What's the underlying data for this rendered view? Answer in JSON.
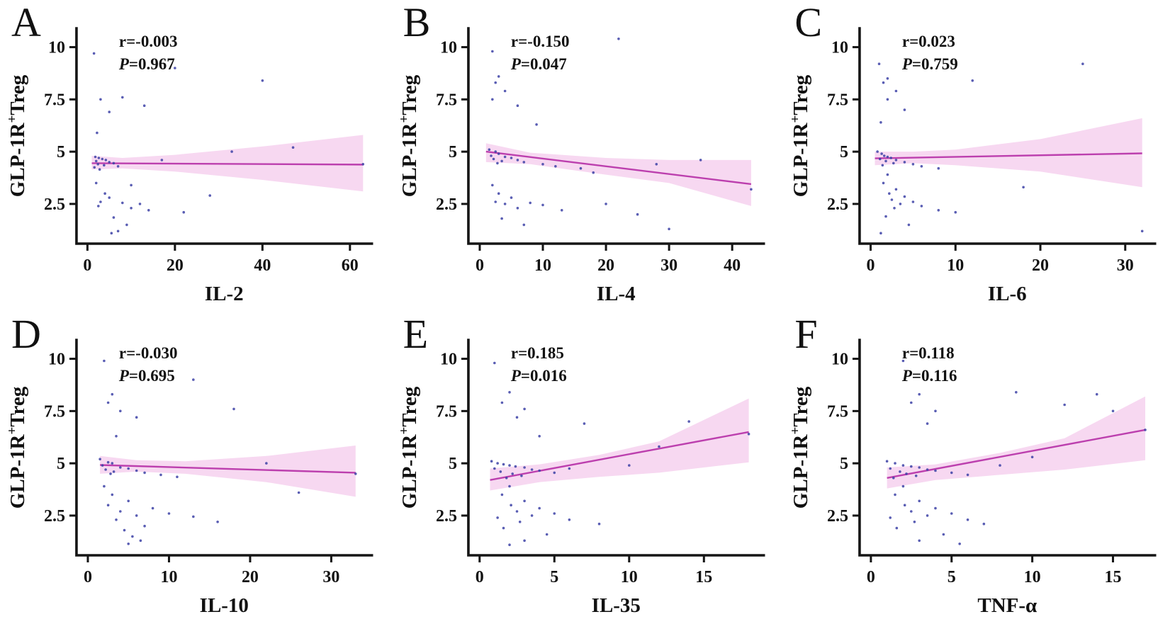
{
  "colors": {
    "band": "#f7d8f1",
    "line": "#bc3fae",
    "dots": "#3c41a6",
    "axis": "#151515"
  },
  "chart_data": [
    {
      "type": "scatter",
      "panel": "A",
      "xlabel": "IL-2",
      "ylabel": {
        "pre": "GLP-1R",
        "sup": "+",
        "post": "Treg"
      },
      "stats": {
        "r": "r=-0.003",
        "p_italic": "P",
        "p_rest": "=0.967"
      },
      "xlim": [
        -2.5,
        65
      ],
      "ylim": [
        0.6,
        10.9
      ],
      "xticks": [
        0,
        20,
        40,
        60
      ],
      "yticks": [
        2.5,
        5,
        7.5,
        10
      ],
      "regression": {
        "x": [
          1,
          63
        ],
        "y": [
          4.45,
          4.38
        ]
      },
      "band": {
        "x": [
          1,
          8,
          20,
          40,
          63
        ],
        "upper": [
          4.8,
          4.7,
          4.85,
          5.25,
          5.8
        ],
        "lower": [
          4.15,
          4.2,
          4.05,
          3.65,
          3.1
        ]
      },
      "points": [
        [
          1.5,
          9.7
        ],
        [
          8,
          7.6
        ],
        [
          3,
          7.5
        ],
        [
          13,
          7.2
        ],
        [
          5,
          6.9
        ],
        [
          2.2,
          5.9
        ],
        [
          20,
          9.0
        ],
        [
          40,
          8.4
        ],
        [
          1.8,
          4.75
        ],
        [
          2.6,
          4.7
        ],
        [
          3.4,
          4.65
        ],
        [
          4.2,
          4.6
        ],
        [
          2,
          4.55
        ],
        [
          5,
          4.5
        ],
        [
          6,
          4.45
        ],
        [
          2.4,
          4.4
        ],
        [
          3.8,
          4.35
        ],
        [
          7,
          4.3
        ],
        [
          1.6,
          4.25
        ],
        [
          2.8,
          4.15
        ],
        [
          2,
          3.5
        ],
        [
          10,
          3.4
        ],
        [
          4,
          3.0
        ],
        [
          28,
          2.9
        ],
        [
          5,
          2.8
        ],
        [
          3,
          2.6
        ],
        [
          8,
          2.55
        ],
        [
          12,
          2.5
        ],
        [
          2.5,
          2.4
        ],
        [
          10,
          2.3
        ],
        [
          14,
          2.2
        ],
        [
          22,
          2.1
        ],
        [
          6,
          1.85
        ],
        [
          9,
          1.5
        ],
        [
          7,
          1.2
        ],
        [
          5.5,
          1.1
        ],
        [
          33,
          5.0
        ],
        [
          47,
          5.2
        ],
        [
          63,
          4.4
        ],
        [
          17,
          4.6
        ]
      ]
    },
    {
      "type": "scatter",
      "panel": "B",
      "xlabel": "IL-4",
      "ylabel": {
        "pre": "GLP-1R",
        "sup": "+",
        "post": "Treg"
      },
      "stats": {
        "r": "r=-0.150",
        "p_italic": "P",
        "p_rest": "=0.047"
      },
      "xlim": [
        -1.8,
        45
      ],
      "ylim": [
        0.6,
        10.9
      ],
      "xticks": [
        0,
        10,
        20,
        30,
        40
      ],
      "yticks": [
        2.5,
        5,
        7.5,
        10
      ],
      "regression": {
        "x": [
          1,
          43
        ],
        "y": [
          5.0,
          3.45
        ]
      },
      "band": {
        "x": [
          1,
          8,
          20,
          30,
          43
        ],
        "upper": [
          5.4,
          4.95,
          4.7,
          4.6,
          4.6
        ],
        "lower": [
          4.5,
          4.4,
          3.9,
          3.5,
          2.4
        ]
      },
      "points": [
        [
          2,
          9.8
        ],
        [
          22,
          10.4
        ],
        [
          3,
          8.6
        ],
        [
          2.5,
          8.3
        ],
        [
          4,
          7.9
        ],
        [
          2,
          7.5
        ],
        [
          6,
          7.2
        ],
        [
          9,
          6.3
        ],
        [
          1.5,
          5.1
        ],
        [
          2.5,
          5.0
        ],
        [
          3,
          4.9
        ],
        [
          1.8,
          4.8
        ],
        [
          4,
          4.75
        ],
        [
          5,
          4.7
        ],
        [
          2.2,
          4.65
        ],
        [
          6,
          4.6
        ],
        [
          3.5,
          4.55
        ],
        [
          7,
          4.5
        ],
        [
          2.8,
          4.45
        ],
        [
          10,
          4.4
        ],
        [
          12,
          4.3
        ],
        [
          16,
          4.2
        ],
        [
          18,
          4.0
        ],
        [
          35,
          4.6
        ],
        [
          28,
          4.4
        ],
        [
          2,
          3.4
        ],
        [
          3,
          3.0
        ],
        [
          5,
          2.8
        ],
        [
          2.5,
          2.6
        ],
        [
          8,
          2.55
        ],
        [
          4,
          2.5
        ],
        [
          10,
          2.45
        ],
        [
          6,
          2.3
        ],
        [
          13,
          2.2
        ],
        [
          20,
          2.5
        ],
        [
          25,
          2.0
        ],
        [
          3.5,
          1.8
        ],
        [
          7,
          1.5
        ],
        [
          30,
          1.3
        ],
        [
          43,
          3.2
        ]
      ]
    },
    {
      "type": "scatter",
      "panel": "C",
      "xlabel": "IL-6",
      "ylabel": {
        "pre": "GLP-1R",
        "sup": "+",
        "post": "Treg"
      },
      "stats": {
        "r": "r=0.023",
        "p_italic": "P",
        "p_rest": "=0.759"
      },
      "xlim": [
        -1.3,
        33.5
      ],
      "ylim": [
        0.6,
        10.9
      ],
      "xticks": [
        0,
        10,
        20,
        30
      ],
      "yticks": [
        2.5,
        5,
        7.5,
        10
      ],
      "regression": {
        "x": [
          0.5,
          32
        ],
        "y": [
          4.68,
          4.92
        ]
      },
      "band": {
        "x": [
          0.5,
          5,
          10,
          20,
          32
        ],
        "upper": [
          5.0,
          5.0,
          5.1,
          5.6,
          6.6
        ],
        "lower": [
          4.35,
          4.45,
          4.35,
          4.05,
          3.3
        ]
      },
      "points": [
        [
          1,
          9.2
        ],
        [
          25,
          9.2
        ],
        [
          2,
          8.5
        ],
        [
          1.5,
          8.3
        ],
        [
          12,
          8.4
        ],
        [
          3,
          7.9
        ],
        [
          2,
          7.5
        ],
        [
          4,
          7.0
        ],
        [
          1.2,
          6.4
        ],
        [
          0.8,
          5.0
        ],
        [
          1.3,
          4.9
        ],
        [
          1.6,
          4.8
        ],
        [
          2,
          4.75
        ],
        [
          2.4,
          4.7
        ],
        [
          1.1,
          4.65
        ],
        [
          3,
          4.6
        ],
        [
          1.8,
          4.55
        ],
        [
          4,
          4.5
        ],
        [
          2.7,
          4.45
        ],
        [
          5,
          4.4
        ],
        [
          1.4,
          4.35
        ],
        [
          6,
          4.3
        ],
        [
          8,
          4.2
        ],
        [
          18,
          3.3
        ],
        [
          2,
          3.9
        ],
        [
          1.5,
          3.5
        ],
        [
          3,
          3.2
        ],
        [
          2.2,
          3.0
        ],
        [
          4,
          2.85
        ],
        [
          2.5,
          2.7
        ],
        [
          5,
          2.6
        ],
        [
          3.5,
          2.5
        ],
        [
          6,
          2.4
        ],
        [
          2.8,
          2.3
        ],
        [
          8,
          2.2
        ],
        [
          10,
          2.1
        ],
        [
          1.8,
          1.9
        ],
        [
          4.5,
          1.5
        ],
        [
          1.2,
          1.1
        ],
        [
          32,
          1.2
        ]
      ]
    },
    {
      "type": "scatter",
      "panel": "D",
      "xlabel": "IL-10",
      "ylabel": {
        "pre": "GLP-1R",
        "sup": "+",
        "post": "Treg"
      },
      "stats": {
        "r": "r=-0.030",
        "p_italic": "P",
        "p_rest": "=0.695"
      },
      "xlim": [
        -1.4,
        35
      ],
      "ylim": [
        0.6,
        10.9
      ],
      "xticks": [
        0,
        10,
        20,
        30
      ],
      "yticks": [
        2.5,
        5,
        7.5,
        10
      ],
      "regression": {
        "x": [
          1.5,
          33
        ],
        "y": [
          4.92,
          4.55
        ]
      },
      "band": {
        "x": [
          1.5,
          6,
          12,
          22,
          33
        ],
        "upper": [
          5.35,
          5.15,
          5.1,
          5.35,
          5.85
        ],
        "lower": [
          4.5,
          4.6,
          4.5,
          4.1,
          3.4
        ]
      },
      "points": [
        [
          2,
          9.9
        ],
        [
          13,
          9.0
        ],
        [
          3,
          8.3
        ],
        [
          2.5,
          7.9
        ],
        [
          18,
          7.6
        ],
        [
          4,
          7.5
        ],
        [
          6,
          7.2
        ],
        [
          3.5,
          6.3
        ],
        [
          1.5,
          5.2
        ],
        [
          2.5,
          5.05
        ],
        [
          3,
          5.0
        ],
        [
          22,
          5.0
        ],
        [
          1.8,
          4.9
        ],
        [
          4,
          4.8
        ],
        [
          5,
          4.75
        ],
        [
          2.2,
          4.7
        ],
        [
          6,
          4.65
        ],
        [
          3.2,
          4.6
        ],
        [
          7,
          4.55
        ],
        [
          2.8,
          4.5
        ],
        [
          9,
          4.45
        ],
        [
          11,
          4.35
        ],
        [
          33,
          4.5
        ],
        [
          2,
          3.9
        ],
        [
          3,
          3.5
        ],
        [
          26,
          3.6
        ],
        [
          5,
          3.2
        ],
        [
          2.5,
          3.0
        ],
        [
          8,
          2.85
        ],
        [
          4,
          2.7
        ],
        [
          10,
          2.6
        ],
        [
          6,
          2.5
        ],
        [
          13,
          2.45
        ],
        [
          3.5,
          2.3
        ],
        [
          16,
          2.2
        ],
        [
          7,
          2.0
        ],
        [
          4.5,
          1.8
        ],
        [
          5.5,
          1.5
        ],
        [
          6.5,
          1.3
        ],
        [
          5,
          1.15
        ]
      ]
    },
    {
      "type": "scatter",
      "panel": "E",
      "xlabel": "IL-35",
      "ylabel": {
        "pre": "GLP-1R",
        "sup": "+",
        "post": "Treg"
      },
      "stats": {
        "r": "r=0.185",
        "p_italic": "P",
        "p_rest": "=0.016"
      },
      "xlim": [
        -0.75,
        19
      ],
      "ylim": [
        0.6,
        10.9
      ],
      "xticks": [
        0,
        5,
        10,
        15
      ],
      "yticks": [
        2.5,
        5,
        7.5,
        10
      ],
      "regression": {
        "x": [
          0.7,
          18
        ],
        "y": [
          4.2,
          6.5
        ]
      },
      "band": {
        "x": [
          0.7,
          4,
          8,
          12,
          18
        ],
        "upper": [
          4.75,
          4.95,
          5.4,
          6.05,
          8.1
        ],
        "lower": [
          3.7,
          4.1,
          4.35,
          4.55,
          5.05
        ]
      },
      "points": [
        [
          1,
          9.8
        ],
        [
          5,
          9.0
        ],
        [
          2,
          8.4
        ],
        [
          1.5,
          7.9
        ],
        [
          3,
          7.6
        ],
        [
          2.5,
          7.2
        ],
        [
          14,
          7.0
        ],
        [
          7,
          6.9
        ],
        [
          4,
          6.3
        ],
        [
          18,
          6.4
        ],
        [
          12,
          5.8
        ],
        [
          0.8,
          5.1
        ],
        [
          1.2,
          5.0
        ],
        [
          1.6,
          4.95
        ],
        [
          2,
          4.9
        ],
        [
          10,
          4.9
        ],
        [
          2.4,
          4.85
        ],
        [
          3,
          4.8
        ],
        [
          1,
          4.75
        ],
        [
          6,
          4.75
        ],
        [
          3.5,
          4.7
        ],
        [
          4,
          4.65
        ],
        [
          1.4,
          4.6
        ],
        [
          5,
          4.55
        ],
        [
          2.2,
          4.5
        ],
        [
          2.8,
          4.4
        ],
        [
          1.8,
          4.3
        ],
        [
          2,
          3.9
        ],
        [
          1.5,
          3.5
        ],
        [
          3,
          3.2
        ],
        [
          2.1,
          3.0
        ],
        [
          4,
          2.85
        ],
        [
          2.5,
          2.7
        ],
        [
          5,
          2.6
        ],
        [
          3.5,
          2.5
        ],
        [
          1.2,
          2.4
        ],
        [
          6,
          2.3
        ],
        [
          2.7,
          2.2
        ],
        [
          8,
          2.1
        ],
        [
          1.6,
          1.9
        ],
        [
          4.5,
          1.6
        ],
        [
          3,
          1.3
        ],
        [
          2,
          1.1
        ]
      ]
    },
    {
      "type": "scatter",
      "panel": "F",
      "xlabel": "TNF-α",
      "ylabel": {
        "pre": "GLP-1R",
        "sup": "+",
        "post": "Treg"
      },
      "stats": {
        "r": "r=0.118",
        "p_italic": "P",
        "p_rest": "=0.116"
      },
      "xlim": [
        -0.7,
        17.6
      ],
      "ylim": [
        0.6,
        10.9
      ],
      "xticks": [
        0,
        5,
        10,
        15
      ],
      "yticks": [
        2.5,
        5,
        7.5,
        10
      ],
      "regression": {
        "x": [
          1,
          17
        ],
        "y": [
          4.3,
          6.6
        ]
      },
      "band": {
        "x": [
          1,
          4,
          8,
          12,
          17
        ],
        "upper": [
          4.8,
          4.95,
          5.5,
          6.2,
          8.2
        ],
        "lower": [
          3.8,
          4.2,
          4.45,
          4.7,
          5.15
        ]
      },
      "points": [
        [
          2,
          9.9
        ],
        [
          9,
          8.4
        ],
        [
          3,
          8.3
        ],
        [
          14,
          8.3
        ],
        [
          2.5,
          7.9
        ],
        [
          12,
          7.8
        ],
        [
          15,
          7.5
        ],
        [
          4,
          7.5
        ],
        [
          3.5,
          6.9
        ],
        [
          17,
          6.6
        ],
        [
          1,
          5.1
        ],
        [
          1.5,
          5.0
        ],
        [
          2,
          4.9
        ],
        [
          10,
          5.3
        ],
        [
          2.5,
          4.85
        ],
        [
          3,
          4.8
        ],
        [
          1.2,
          4.75
        ],
        [
          3.5,
          4.7
        ],
        [
          4,
          4.65
        ],
        [
          1.8,
          4.6
        ],
        [
          8,
          4.9
        ],
        [
          5,
          4.55
        ],
        [
          2.2,
          4.5
        ],
        [
          6,
          4.45
        ],
        [
          2.8,
          4.4
        ],
        [
          1.4,
          4.3
        ],
        [
          2,
          3.9
        ],
        [
          1.5,
          3.5
        ],
        [
          3,
          3.2
        ],
        [
          2.1,
          3.0
        ],
        [
          4,
          2.85
        ],
        [
          2.5,
          2.7
        ],
        [
          5,
          2.6
        ],
        [
          3.5,
          2.5
        ],
        [
          1.2,
          2.4
        ],
        [
          6,
          2.3
        ],
        [
          2.7,
          2.2
        ],
        [
          7,
          2.1
        ],
        [
          1.6,
          1.9
        ],
        [
          4.5,
          1.6
        ],
        [
          3,
          1.3
        ],
        [
          5.5,
          1.15
        ]
      ]
    }
  ]
}
